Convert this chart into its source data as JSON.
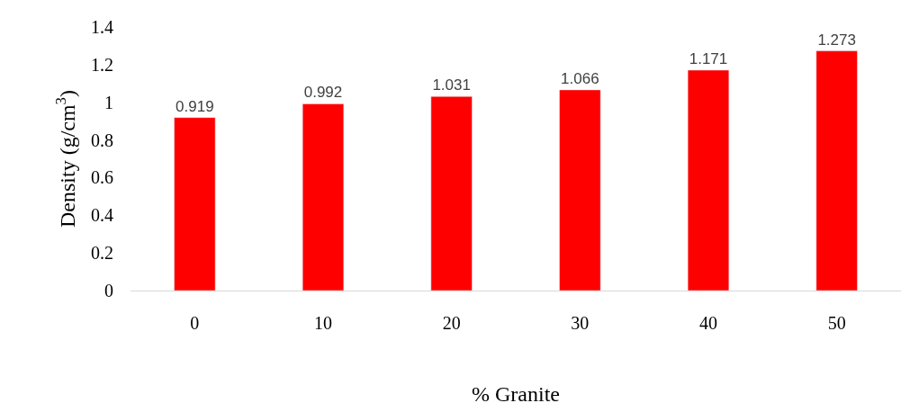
{
  "chart_data": {
    "type": "bar",
    "xlabel": "% Granite",
    "ylabel": "Density (g/cm$^{3}$)",
    "categories": [
      "0",
      "10",
      "20",
      "30",
      "40",
      "50"
    ],
    "values": [
      0.919,
      0.992,
      1.031,
      1.066,
      1.171,
      1.273
    ],
    "color": "#ff0000",
    "ylim": [
      0,
      1.4
    ],
    "yticks": [
      0,
      0.2,
      0.4,
      0.6,
      0.8,
      1,
      1.2,
      1.4
    ],
    "legend": false,
    "data_labels": true
  }
}
